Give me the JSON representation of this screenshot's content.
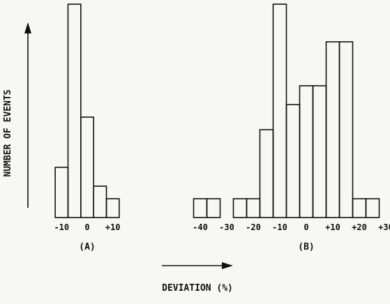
{
  "chart_data": [
    {
      "type": "bar",
      "panel_label": "(A)",
      "x_tick_labels": [
        "-10",
        "0",
        "+10"
      ],
      "bins": [
        {
          "x_start": -12.5,
          "x_end": -7.5,
          "value": 4
        },
        {
          "x_start": -7.5,
          "x_end": -2.5,
          "value": 17
        },
        {
          "x_start": -2.5,
          "x_end": 2.5,
          "value": 8
        },
        {
          "x_start": 2.5,
          "x_end": 7.5,
          "value": 2.5
        },
        {
          "x_start": 7.5,
          "x_end": 12.5,
          "value": 1.5
        }
      ]
    },
    {
      "type": "bar",
      "panel_label": "(B)",
      "x_tick_labels": [
        "-40",
        "-30",
        "-20",
        "-10",
        "0",
        "+10",
        "+20",
        "+30"
      ],
      "bins": [
        {
          "x_start": -42.5,
          "x_end": -37.5,
          "value": 1.5
        },
        {
          "x_start": -37.5,
          "x_end": -32.5,
          "value": 1.5
        },
        {
          "x_start": -27.5,
          "x_end": -22.5,
          "value": 1.5
        },
        {
          "x_start": -22.5,
          "x_end": -17.5,
          "value": 1.5
        },
        {
          "x_start": -17.5,
          "x_end": -12.5,
          "value": 7
        },
        {
          "x_start": -12.5,
          "x_end": -7.5,
          "value": 17
        },
        {
          "x_start": -7.5,
          "x_end": -2.5,
          "value": 9
        },
        {
          "x_start": -2.5,
          "x_end": 2.5,
          "value": 10.5
        },
        {
          "x_start": 2.5,
          "x_end": 7.5,
          "value": 10.5
        },
        {
          "x_start": 7.5,
          "x_end": 12.5,
          "value": 14
        },
        {
          "x_start": 12.5,
          "x_end": 17.5,
          "value": 14
        },
        {
          "x_start": 17.5,
          "x_end": 22.5,
          "value": 1.5
        },
        {
          "x_start": 22.5,
          "x_end": 27.5,
          "value": 1.5
        }
      ]
    }
  ],
  "ylabel": "NUMBER OF EVENTS",
  "xlabel": "DEVIATION (%)"
}
